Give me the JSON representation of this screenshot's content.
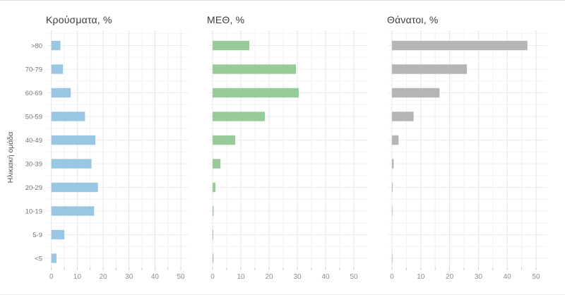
{
  "figure_title": "",
  "chart_data": {
    "type": "bar",
    "orientation": "horizontal",
    "layout": "3 horizontal facets, shared categorical y-axis",
    "ylabel": "Ηλικιακή ομάδα",
    "categories": [
      ">80",
      "70-79",
      "60-69",
      "50-59",
      "40-49",
      "30-39",
      "20-29",
      "10-19",
      "5-9",
      "<5"
    ],
    "series": [
      {
        "name": "Κρούσματα, %",
        "color": "#99c6e3",
        "values": [
          3.5,
          4.5,
          7.5,
          13,
          17,
          15.5,
          18,
          16.5,
          5,
          2
        ]
      },
      {
        "name": "ΜΕΘ, %",
        "color": "#97cc9a",
        "values": [
          13,
          29.5,
          30.5,
          18.5,
          8,
          2.8,
          1,
          0.35,
          0.25,
          0.3
        ]
      },
      {
        "name": "Θάνατοι, %",
        "color": "#b5b5b5",
        "values": [
          47,
          26,
          16.5,
          7.5,
          2.3,
          0.6,
          0.25,
          0.15,
          0,
          0.15
        ]
      }
    ],
    "x_ticks": [
      0,
      10,
      20,
      30,
      40,
      50
    ],
    "xlim": [
      0,
      50
    ],
    "grid": "major every 10, minor every 5, light gray on white",
    "colors": {
      "grid_major": "#e5e5e5",
      "grid_minor": "#f1f1f1",
      "tick_label": "#8e8e8e",
      "category_label": "#757575",
      "title_text": "#3b3b3b"
    }
  }
}
